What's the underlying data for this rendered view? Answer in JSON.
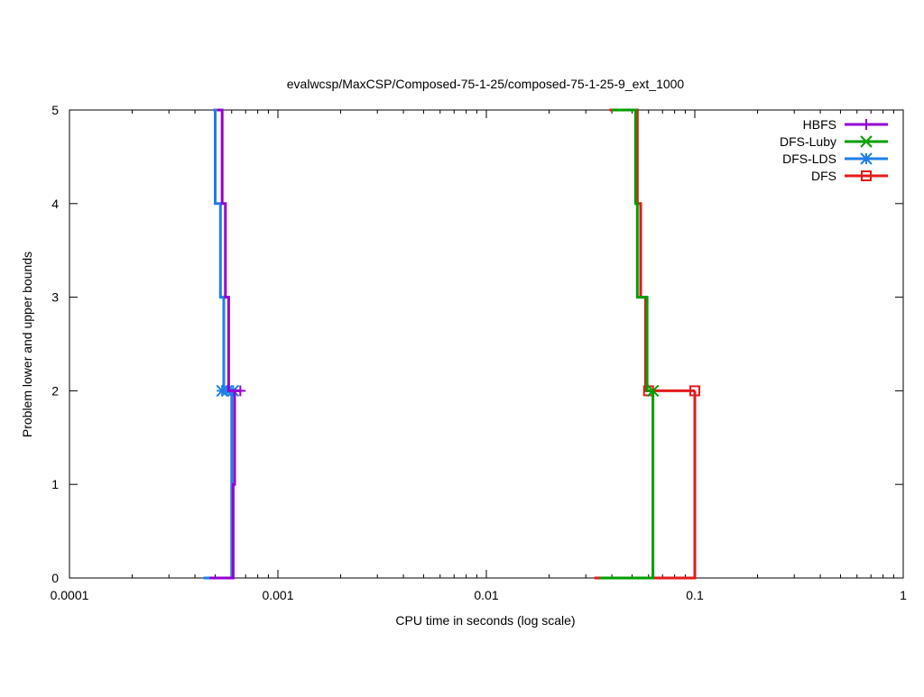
{
  "chart_data": {
    "type": "line",
    "title": "evalwcsp/MaxCSP/Composed-75-1-25/composed-75-1-25-9_ext_1000",
    "xlabel": "CPU time in seconds (log scale)",
    "ylabel": "Problem lower and upper bounds",
    "x_scale": "log",
    "xlim": [
      0.0001,
      1
    ],
    "ylim": [
      0,
      5
    ],
    "x_ticks": [
      {
        "value": 0.0001,
        "label": "0.0001"
      },
      {
        "value": 0.001,
        "label": "0.001"
      },
      {
        "value": 0.01,
        "label": "0.01"
      },
      {
        "value": 0.1,
        "label": "0.1"
      },
      {
        "value": 1,
        "label": "1"
      }
    ],
    "y_ticks": [
      {
        "value": 0,
        "label": "0"
      },
      {
        "value": 1,
        "label": "1"
      },
      {
        "value": 2,
        "label": "2"
      },
      {
        "value": 3,
        "label": "3"
      },
      {
        "value": 4,
        "label": "4"
      },
      {
        "value": 5,
        "label": "5"
      }
    ],
    "grid": false,
    "legend_position": "top-right",
    "series": [
      {
        "name": "HBFS",
        "color": "#9400d3",
        "marker": "plus",
        "upper": [
          [
            0.00051,
            5
          ],
          [
            0.00054,
            5
          ],
          [
            0.00054,
            4
          ],
          [
            0.00056,
            4
          ],
          [
            0.00056,
            3
          ],
          [
            0.00058,
            3
          ],
          [
            0.00058,
            2
          ],
          [
            0.00066,
            2
          ]
        ],
        "lower": [
          [
            0.00047,
            0
          ],
          [
            0.00061,
            0
          ],
          [
            0.00061,
            1
          ],
          [
            0.00062,
            1
          ],
          [
            0.00062,
            2
          ],
          [
            0.00066,
            2
          ]
        ],
        "markers": [
          [
            0.00066,
            2
          ]
        ]
      },
      {
        "name": "DFS-Luby",
        "color": "#009e00",
        "marker": "cross",
        "upper": [
          [
            0.04,
            5
          ],
          [
            0.052,
            5
          ],
          [
            0.052,
            4
          ],
          [
            0.053,
            4
          ],
          [
            0.053,
            3
          ],
          [
            0.059,
            3
          ],
          [
            0.059,
            2
          ],
          [
            0.063,
            2
          ]
        ],
        "lower": [
          [
            0.035,
            0
          ],
          [
            0.063,
            0
          ],
          [
            0.063,
            2
          ]
        ],
        "markers": [
          [
            0.063,
            2
          ]
        ]
      },
      {
        "name": "DFS-LDS",
        "color": "#1e7fe6",
        "marker": "asterisk",
        "upper": [
          [
            0.00049,
            5
          ],
          [
            0.0005,
            5
          ],
          [
            0.0005,
            4
          ],
          [
            0.00053,
            4
          ],
          [
            0.00053,
            3
          ],
          [
            0.00055,
            3
          ],
          [
            0.00055,
            2
          ],
          [
            0.00061,
            2
          ]
        ],
        "lower": [
          [
            0.00044,
            0
          ],
          [
            0.0006,
            0
          ],
          [
            0.0006,
            2
          ]
        ],
        "markers": [
          [
            0.00054,
            2
          ],
          [
            0.00057,
            2
          ],
          [
            0.00061,
            2
          ]
        ]
      },
      {
        "name": "DFS",
        "color": "#e41a1c",
        "marker": "square",
        "upper": [
          [
            0.039,
            5
          ],
          [
            0.053,
            5
          ],
          [
            0.053,
            4
          ],
          [
            0.055,
            4
          ],
          [
            0.055,
            3
          ],
          [
            0.058,
            3
          ],
          [
            0.058,
            2
          ],
          [
            0.1,
            2
          ]
        ],
        "lower": [
          [
            0.033,
            0
          ],
          [
            0.1,
            0
          ],
          [
            0.1,
            2
          ]
        ],
        "markers": [
          [
            0.06,
            2
          ],
          [
            0.1,
            2
          ]
        ]
      }
    ]
  }
}
